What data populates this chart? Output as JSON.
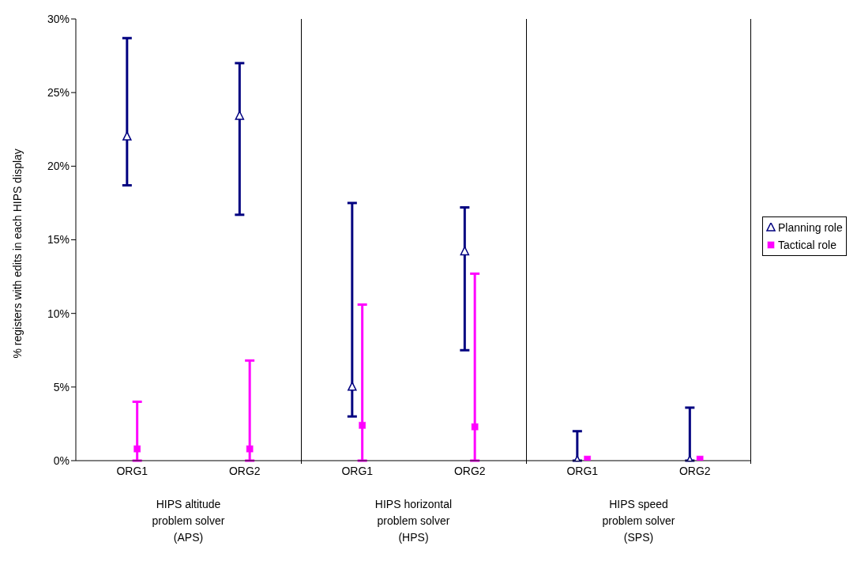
{
  "chart_data": {
    "type": "scatter",
    "ylabel": "% registers with edits in each HIPS display",
    "categories": [
      "ORG1",
      "ORG2",
      "ORG1",
      "ORG2",
      "ORG1",
      "ORG2"
    ],
    "series": [
      {
        "name": "Planning role",
        "color": "#000080",
        "marker": "triangle",
        "values": [
          22.0,
          23.4,
          5.0,
          14.2,
          0,
          0
        ],
        "errors": [
          [
            18.7,
            28.7
          ],
          [
            16.7,
            27.0
          ],
          [
            3.0,
            17.5
          ],
          [
            7.5,
            17.2
          ],
          [
            0,
            2.0
          ],
          [
            0,
            3.6
          ]
        ]
      },
      {
        "name": "Tactical role",
        "color": "#ff00ff",
        "marker": "square",
        "values": [
          0.8,
          0.8,
          2.4,
          2.3,
          0.1,
          0.1
        ],
        "errors": [
          [
            0,
            4.0
          ],
          [
            0,
            6.8
          ],
          [
            0,
            10.6
          ],
          [
            0,
            12.7
          ],
          null,
          null
        ]
      }
    ],
    "ylim": [
      0,
      30
    ],
    "yticks": [
      {
        "value": 0,
        "label": "0%"
      },
      {
        "value": 5,
        "label": "5%"
      },
      {
        "value": 10,
        "label": "10%"
      },
      {
        "value": 15,
        "label": "15%"
      },
      {
        "value": 20,
        "label": "20%"
      },
      {
        "value": 25,
        "label": "25%"
      },
      {
        "value": 30,
        "label": "30%"
      }
    ],
    "grid": false,
    "legend": "right",
    "annotations": [
      "HIPS altitude\nproblem solver\n(APS)",
      "HIPS horizontal\nproblem solver\n(HPS)",
      "HIPS speed\nproblem solver\n(SPS)"
    ]
  }
}
